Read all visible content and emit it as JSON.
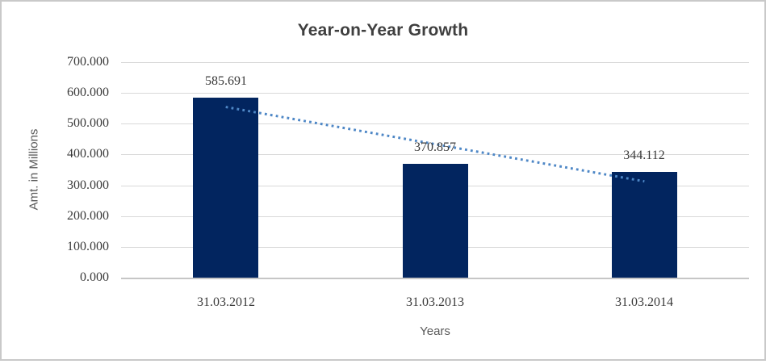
{
  "chart_data": {
    "type": "bar",
    "title": "Year-on-Year Growth",
    "categories": [
      "31.03.2012",
      "31.03.2013",
      "31.03.2014"
    ],
    "values": [
      585.691,
      370.857,
      344.112
    ],
    "data_labels": [
      "585.691",
      "370.857",
      "344.112"
    ],
    "xlabel": "Years",
    "ylabel": "Amt. in Millions",
    "ylim": [
      0,
      700
    ],
    "ytick_interval": 100,
    "ytick_labels": [
      "0.000",
      "100.000",
      "200.000",
      "300.000",
      "400.000",
      "500.000",
      "600.000",
      "700.000"
    ],
    "grid": true,
    "legend": "none",
    "bar_color": "#02255f",
    "trendline": {
      "type": "linear",
      "dash": "dotted",
      "color": "#4e87c6"
    }
  },
  "colors": {
    "background": "#ffffff",
    "chart_border": "#c9c9c9",
    "title_text": "#3f3f3f",
    "tick_text": "#3a3a3a",
    "axis_title_text": "#595959",
    "gridline": "#d9d9d9",
    "axis_line": "#c6c6c6"
  }
}
